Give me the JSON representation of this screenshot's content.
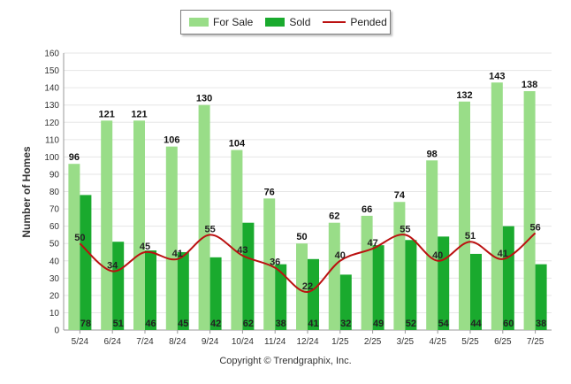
{
  "legend": {
    "for_sale": "For Sale",
    "sold": "Sold",
    "pended": "Pended"
  },
  "copyright": "Copyright © Trendgraphix, Inc.",
  "colors": {
    "for_sale": "#99dd88",
    "sold": "#1aaa2e",
    "pended": "#bb1111",
    "grid": "#e6e6e6",
    "axis": "#999999"
  },
  "chart_data": {
    "type": "bar",
    "categories": [
      "5/24",
      "6/24",
      "7/24",
      "8/24",
      "9/24",
      "10/24",
      "11/24",
      "12/24",
      "1/25",
      "2/25",
      "3/25",
      "4/25",
      "5/25",
      "6/25",
      "7/25"
    ],
    "series": [
      {
        "name": "For Sale",
        "type": "bar",
        "values": [
          96,
          121,
          121,
          106,
          130,
          104,
          76,
          50,
          62,
          66,
          74,
          98,
          132,
          143,
          138
        ]
      },
      {
        "name": "Sold",
        "type": "bar",
        "values": [
          78,
          51,
          46,
          45,
          42,
          62,
          38,
          41,
          32,
          49,
          52,
          54,
          44,
          60,
          38
        ]
      },
      {
        "name": "Pended",
        "type": "line",
        "values": [
          50,
          34,
          45,
          41,
          55,
          43,
          36,
          22,
          40,
          47,
          55,
          40,
          51,
          41,
          56
        ]
      }
    ],
    "ylabel": "Number of Homes",
    "xlabel": "",
    "ylim": [
      0,
      160
    ],
    "yticks": [
      0,
      10,
      20,
      30,
      40,
      50,
      60,
      70,
      80,
      90,
      100,
      110,
      120,
      130,
      140,
      150,
      160
    ],
    "grid": true,
    "legend_position": "top-center"
  }
}
